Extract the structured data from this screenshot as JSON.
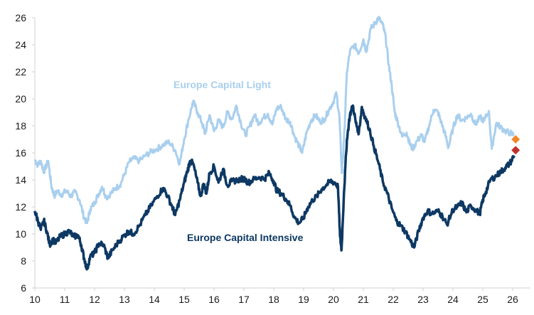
{
  "chart_data": {
    "type": "line",
    "title": "",
    "xlabel": "",
    "ylabel": "",
    "xlim": [
      10,
      26.6
    ],
    "ylim": [
      6,
      26
    ],
    "x_ticks": [
      "10",
      "11",
      "12",
      "13",
      "14",
      "15",
      "16",
      "17",
      "18",
      "19",
      "20",
      "21",
      "22",
      "23",
      "24",
      "25",
      "26"
    ],
    "y_ticks": [
      "6",
      "8",
      "10",
      "12",
      "14",
      "16",
      "18",
      "20",
      "22",
      "24",
      "26"
    ],
    "grid": false,
    "legend": "inline labels",
    "series": [
      {
        "name": "Europe Capital Light",
        "color": "#a9cfee",
        "label_text": "Europe Capital Light",
        "points": [
          [
            10.0,
            15.5
          ],
          [
            10.1,
            15.1
          ],
          [
            10.2,
            15.4
          ],
          [
            10.3,
            14.6
          ],
          [
            10.45,
            15.4
          ],
          [
            10.55,
            13.6
          ],
          [
            10.65,
            12.8
          ],
          [
            10.75,
            13.2
          ],
          [
            10.9,
            12.9
          ],
          [
            11.05,
            13.2
          ],
          [
            11.2,
            12.8
          ],
          [
            11.35,
            13.1
          ],
          [
            11.5,
            12.5
          ],
          [
            11.65,
            11.2
          ],
          [
            11.75,
            10.8
          ],
          [
            11.85,
            11.8
          ],
          [
            12.0,
            12.3
          ],
          [
            12.1,
            12.8
          ],
          [
            12.25,
            13.5
          ],
          [
            12.4,
            12.7
          ],
          [
            12.55,
            13.0
          ],
          [
            12.7,
            13.4
          ],
          [
            12.85,
            13.6
          ],
          [
            13.0,
            14.4
          ],
          [
            13.15,
            15.3
          ],
          [
            13.3,
            15.6
          ],
          [
            13.5,
            15.4
          ],
          [
            13.7,
            15.8
          ],
          [
            13.9,
            16.1
          ],
          [
            14.1,
            16.3
          ],
          [
            14.3,
            16.6
          ],
          [
            14.5,
            16.8
          ],
          [
            14.7,
            16.2
          ],
          [
            14.85,
            15.2
          ],
          [
            15.0,
            17.0
          ],
          [
            15.15,
            18.5
          ],
          [
            15.3,
            19.8
          ],
          [
            15.45,
            19.0
          ],
          [
            15.6,
            18.2
          ],
          [
            15.7,
            17.4
          ],
          [
            15.85,
            18.8
          ],
          [
            16.0,
            17.6
          ],
          [
            16.15,
            18.4
          ],
          [
            16.3,
            17.9
          ],
          [
            16.45,
            19.0
          ],
          [
            16.6,
            18.5
          ],
          [
            16.75,
            19.5
          ],
          [
            16.9,
            18.2
          ],
          [
            17.05,
            17.3
          ],
          [
            17.2,
            18.0
          ],
          [
            17.35,
            18.8
          ],
          [
            17.5,
            18.2
          ],
          [
            17.65,
            18.6
          ],
          [
            17.8,
            18.9
          ],
          [
            17.95,
            18.1
          ],
          [
            18.1,
            19.3
          ],
          [
            18.25,
            19.4
          ],
          [
            18.4,
            18.5
          ],
          [
            18.55,
            18.3
          ],
          [
            18.7,
            17.2
          ],
          [
            18.85,
            16.5
          ],
          [
            18.95,
            16.0
          ],
          [
            19.1,
            17.5
          ],
          [
            19.25,
            18.4
          ],
          [
            19.4,
            18.8
          ],
          [
            19.55,
            18.3
          ],
          [
            19.7,
            18.5
          ],
          [
            19.85,
            19.2
          ],
          [
            20.0,
            19.8
          ],
          [
            20.1,
            20.4
          ],
          [
            20.2,
            18.6
          ],
          [
            20.28,
            14.5
          ],
          [
            20.35,
            16.8
          ],
          [
            20.45,
            22.0
          ],
          [
            20.55,
            23.5
          ],
          [
            20.7,
            24.0
          ],
          [
            20.85,
            23.4
          ],
          [
            21.0,
            24.4
          ],
          [
            21.1,
            23.5
          ],
          [
            21.25,
            25.2
          ],
          [
            21.4,
            25.6
          ],
          [
            21.5,
            26.0
          ],
          [
            21.65,
            25.5
          ],
          [
            21.75,
            24.5
          ],
          [
            21.85,
            22.5
          ],
          [
            21.95,
            21.0
          ],
          [
            22.05,
            19.0
          ],
          [
            22.15,
            18.3
          ],
          [
            22.3,
            17.2
          ],
          [
            22.45,
            17.5
          ],
          [
            22.55,
            16.7
          ],
          [
            22.65,
            16.3
          ],
          [
            22.8,
            16.9
          ],
          [
            22.95,
            17.3
          ],
          [
            23.05,
            16.8
          ],
          [
            23.2,
            18.0
          ],
          [
            23.35,
            19.2
          ],
          [
            23.5,
            19.0
          ],
          [
            23.6,
            18.3
          ],
          [
            23.75,
            17.3
          ],
          [
            23.85,
            16.4
          ],
          [
            24.0,
            17.8
          ],
          [
            24.15,
            18.8
          ],
          [
            24.3,
            18.4
          ],
          [
            24.45,
            18.6
          ],
          [
            24.6,
            18.9
          ],
          [
            24.75,
            18.1
          ],
          [
            24.9,
            18.6
          ],
          [
            25.05,
            18.4
          ],
          [
            25.2,
            19.1
          ],
          [
            25.3,
            16.3
          ],
          [
            25.45,
            18.2
          ],
          [
            25.6,
            17.9
          ],
          [
            25.75,
            17.6
          ],
          [
            25.9,
            17.5
          ],
          [
            26.05,
            17.3
          ]
        ],
        "end_marker": {
          "x": 26.1,
          "y": 17.0,
          "color": "#f0862a",
          "shape": "diamond"
        }
      },
      {
        "name": "Europe Capital Intensive",
        "color": "#0d3863",
        "label_text": "Europe Capital Intensive",
        "points": [
          [
            10.0,
            11.7
          ],
          [
            10.1,
            11.0
          ],
          [
            10.2,
            10.3
          ],
          [
            10.3,
            11.0
          ],
          [
            10.4,
            10.2
          ],
          [
            10.5,
            9.2
          ],
          [
            10.6,
            9.6
          ],
          [
            10.7,
            9.3
          ],
          [
            10.85,
            9.8
          ],
          [
            11.0,
            10.0
          ],
          [
            11.15,
            10.2
          ],
          [
            11.3,
            9.8
          ],
          [
            11.45,
            9.9
          ],
          [
            11.55,
            9.2
          ],
          [
            11.65,
            8.2
          ],
          [
            11.75,
            7.4
          ],
          [
            11.85,
            8.3
          ],
          [
            12.0,
            8.6
          ],
          [
            12.15,
            9.3
          ],
          [
            12.3,
            9.2
          ],
          [
            12.45,
            8.2
          ],
          [
            12.6,
            8.8
          ],
          [
            12.8,
            9.4
          ],
          [
            13.0,
            9.9
          ],
          [
            13.15,
            10.2
          ],
          [
            13.3,
            10.0
          ],
          [
            13.5,
            10.6
          ],
          [
            13.7,
            11.4
          ],
          [
            13.9,
            12.1
          ],
          [
            14.1,
            12.8
          ],
          [
            14.3,
            13.4
          ],
          [
            14.45,
            12.8
          ],
          [
            14.6,
            12.0
          ],
          [
            14.7,
            11.4
          ],
          [
            14.85,
            12.5
          ],
          [
            15.0,
            13.8
          ],
          [
            15.1,
            14.6
          ],
          [
            15.2,
            15.4
          ],
          [
            15.3,
            15.2
          ],
          [
            15.45,
            13.8
          ],
          [
            15.55,
            12.8
          ],
          [
            15.65,
            13.7
          ],
          [
            15.75,
            13.0
          ],
          [
            15.85,
            14.5
          ],
          [
            16.0,
            15.0
          ],
          [
            16.15,
            13.8
          ],
          [
            16.3,
            14.8
          ],
          [
            16.45,
            13.6
          ],
          [
            16.6,
            13.9
          ],
          [
            16.8,
            14.0
          ],
          [
            17.0,
            14.1
          ],
          [
            17.15,
            13.8
          ],
          [
            17.3,
            14.0
          ],
          [
            17.5,
            14.2
          ],
          [
            17.7,
            14.1
          ],
          [
            17.85,
            14.5
          ],
          [
            18.0,
            13.9
          ],
          [
            18.1,
            13.2
          ],
          [
            18.25,
            13.0
          ],
          [
            18.4,
            12.6
          ],
          [
            18.55,
            12.1
          ],
          [
            18.7,
            11.2
          ],
          [
            18.85,
            10.8
          ],
          [
            19.0,
            11.2
          ],
          [
            19.15,
            12.0
          ],
          [
            19.3,
            12.5
          ],
          [
            19.45,
            12.8
          ],
          [
            19.6,
            13.3
          ],
          [
            19.75,
            13.6
          ],
          [
            19.9,
            13.9
          ],
          [
            20.05,
            13.8
          ],
          [
            20.15,
            13.5
          ],
          [
            20.22,
            9.8
          ],
          [
            20.27,
            8.8
          ],
          [
            20.35,
            13.0
          ],
          [
            20.45,
            17.0
          ],
          [
            20.55,
            18.8
          ],
          [
            20.65,
            19.5
          ],
          [
            20.75,
            18.2
          ],
          [
            20.85,
            17.5
          ],
          [
            20.95,
            19.4
          ],
          [
            21.05,
            18.7
          ],
          [
            21.2,
            17.8
          ],
          [
            21.35,
            16.5
          ],
          [
            21.5,
            15.3
          ],
          [
            21.65,
            13.9
          ],
          [
            21.8,
            13.0
          ],
          [
            21.95,
            11.9
          ],
          [
            22.1,
            11.0
          ],
          [
            22.25,
            10.6
          ],
          [
            22.4,
            10.2
          ],
          [
            22.55,
            9.6
          ],
          [
            22.7,
            9.0
          ],
          [
            22.85,
            10.2
          ],
          [
            23.0,
            11.2
          ],
          [
            23.15,
            11.7
          ],
          [
            23.3,
            11.5
          ],
          [
            23.5,
            11.7
          ],
          [
            23.65,
            11.3
          ],
          [
            23.8,
            10.7
          ],
          [
            24.0,
            11.8
          ],
          [
            24.15,
            12.0
          ],
          [
            24.3,
            12.3
          ],
          [
            24.45,
            11.6
          ],
          [
            24.6,
            12.1
          ],
          [
            24.75,
            11.8
          ],
          [
            24.9,
            11.5
          ],
          [
            25.0,
            12.5
          ],
          [
            25.1,
            13.1
          ],
          [
            25.25,
            14.0
          ],
          [
            25.45,
            14.3
          ],
          [
            25.6,
            14.6
          ],
          [
            25.75,
            14.9
          ],
          [
            25.9,
            15.2
          ],
          [
            26.05,
            15.8
          ]
        ],
        "end_marker": {
          "x": 26.1,
          "y": 16.2,
          "color": "#c3302c",
          "shape": "diamond"
        }
      }
    ]
  }
}
